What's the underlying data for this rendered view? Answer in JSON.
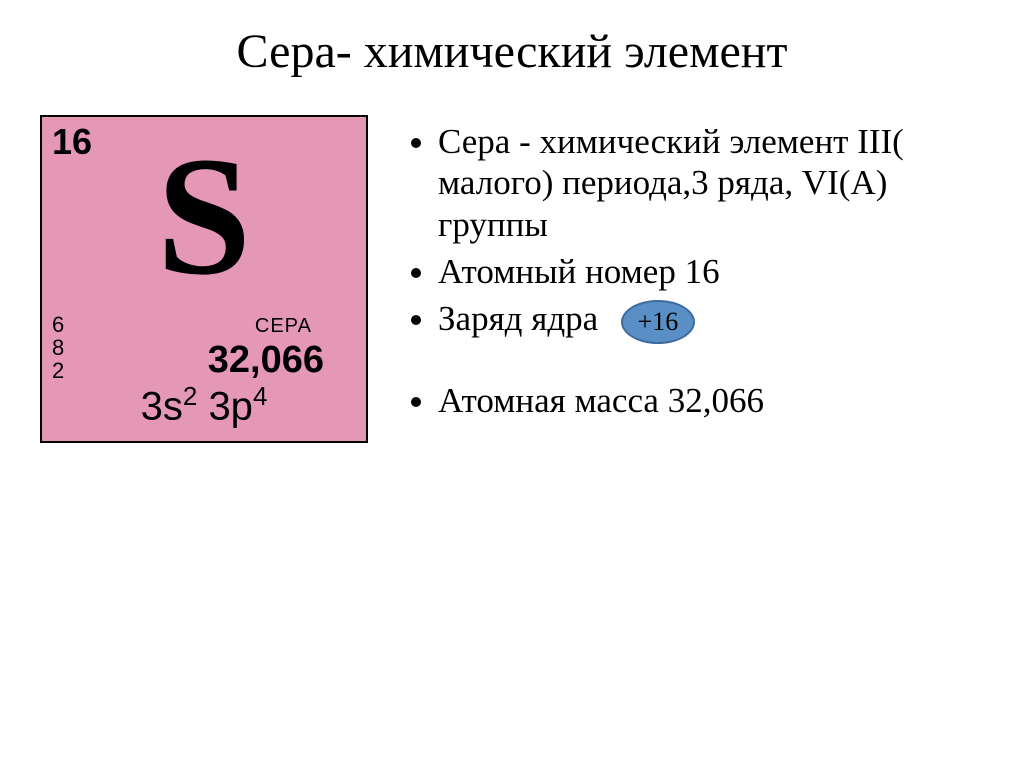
{
  "title": "Сера- химический элемент",
  "tile": {
    "atomic_number": "16",
    "symbol": "S",
    "shells": [
      "6",
      "8",
      "2"
    ],
    "name_ru": "СЕРА",
    "mass": "32,066",
    "config_1_base": "3s",
    "config_1_sup": "2",
    "config_2_base": "3p",
    "config_2_sup": "4",
    "bg_color": "#e598b6",
    "border_color": "#000000"
  },
  "bullets": {
    "b1": "Сера - химический элемент III( малого) периода,3 ряда, VI(А) группы",
    "b2": "Атомный номер 16",
    "b3_label": "Заряд ядра",
    "b3_charge": "+16",
    "b4": "Атомная масса 32,066"
  },
  "style": {
    "title_fontsize": 48,
    "bullet_fontsize": 35,
    "oval_bg": "#5a8fc6",
    "oval_border": "#3d6ba0"
  }
}
